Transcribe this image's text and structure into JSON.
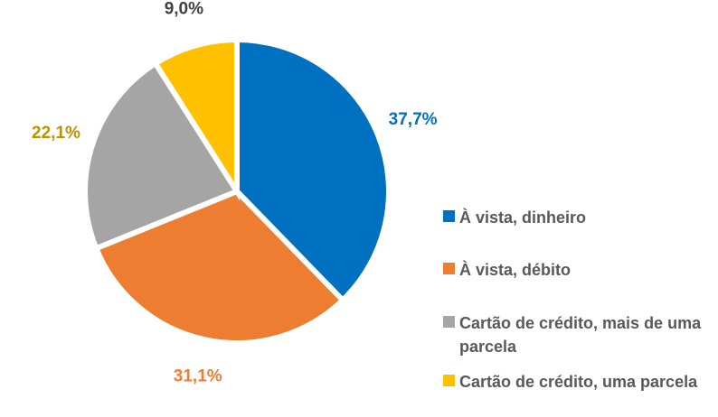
{
  "chart_data": {
    "type": "pie",
    "categories": [
      "À vista, dinheiro",
      "À vista, débito",
      "Cartão de crédito, mais de uma parcela",
      "Cartão de crédito, uma parcela"
    ],
    "values": [
      37.7,
      31.1,
      22.1,
      9.0
    ],
    "value_labels": [
      "37,7%",
      "31,1%",
      "22,1%",
      "9,0%"
    ],
    "colors": [
      "#0070c0",
      "#ed7d31",
      "#a5a5a5",
      "#ffc000"
    ],
    "label_colors": [
      "#0070c0",
      "#ed7d31",
      "#bf9000",
      "#404040"
    ],
    "legend": "right"
  }
}
